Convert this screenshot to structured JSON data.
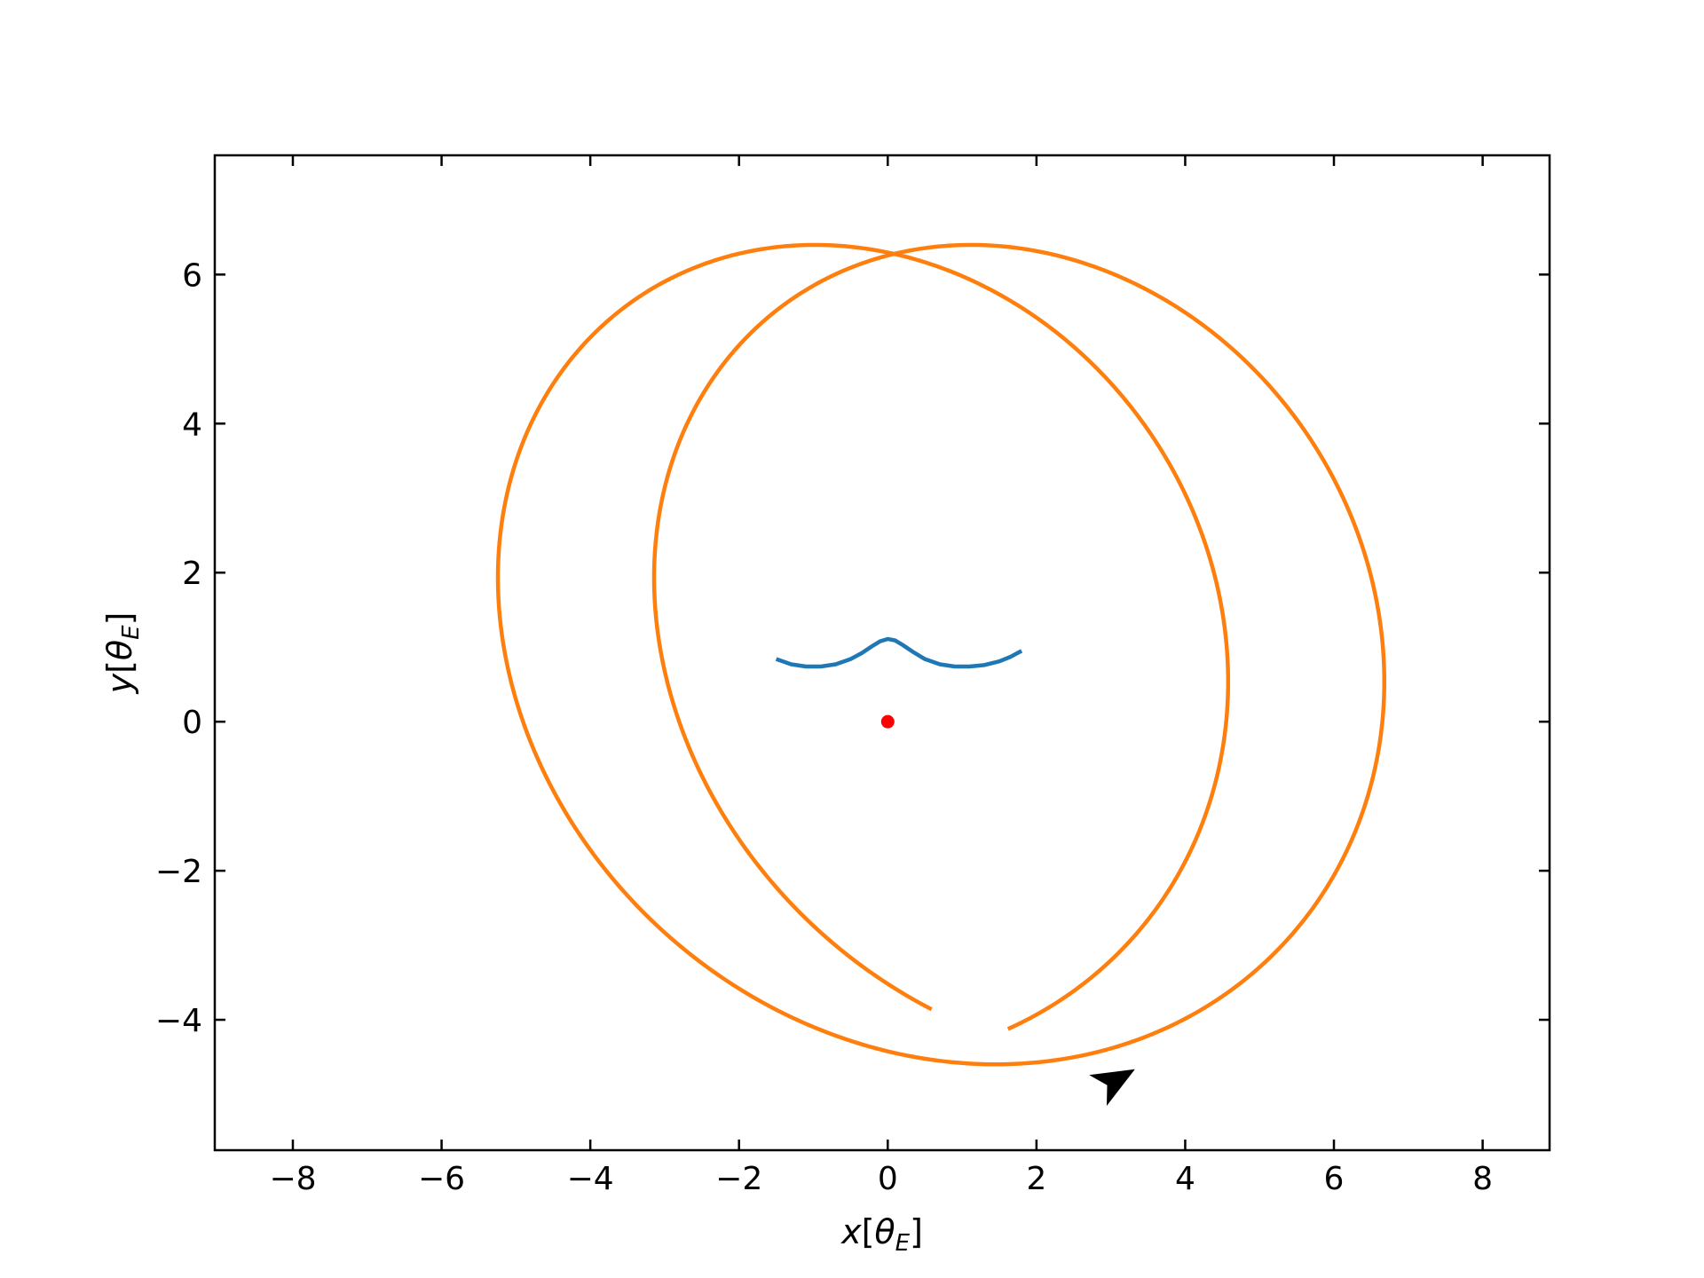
{
  "chart_data": {
    "type": "line",
    "title": "",
    "xlabel": {
      "var": "x",
      "open": "[",
      "sym": "θ",
      "sub": "E",
      "close": "]"
    },
    "ylabel": {
      "var": "y",
      "open": "[",
      "sym": "θ",
      "sub": "E",
      "close": "]"
    },
    "xlim": [
      -9.05,
      8.9
    ],
    "ylim": [
      -5.75,
      7.6
    ],
    "xticks": [
      -8,
      -6,
      -4,
      -2,
      0,
      2,
      4,
      6,
      8
    ],
    "yticks": [
      -4,
      -2,
      0,
      2,
      4,
      6
    ],
    "xtick_labels": [
      "−8",
      "−6",
      "−4",
      "−2",
      "0",
      "2",
      "4",
      "6",
      "8"
    ],
    "ytick_labels": [
      "−4",
      "−2",
      "0",
      "2",
      "4",
      "6"
    ],
    "grid": false,
    "ticks_direction": "in",
    "colors": {
      "orbit": "#ff7f0e",
      "wave": "#1f77b4",
      "point": "#ff0000",
      "arrow": "#000000"
    },
    "series": [
      {
        "kind": "trochoid",
        "color": "#ff7f0e",
        "description_values": {
          "ellipse_center": [
            0.0,
            0.9
          ],
          "semi_axis_x": 5.1,
          "semi_axis_y": 5.8,
          "rotation_deg": 42,
          "drift_per_turn": [
            2.1,
            0.0
          ],
          "turns": 1.85
        }
      },
      {
        "kind": "line",
        "color": "#1f77b4",
        "x": [
          -1.5,
          -1.3,
          -1.1,
          -0.9,
          -0.7,
          -0.5,
          -0.35,
          -0.2,
          -0.1,
          0.0,
          0.1,
          0.2,
          0.35,
          0.5,
          0.7,
          0.9,
          1.1,
          1.3,
          1.5,
          1.65,
          1.8
        ],
        "y": [
          0.84,
          0.77,
          0.74,
          0.74,
          0.77,
          0.84,
          0.92,
          1.02,
          1.08,
          1.11,
          1.09,
          1.03,
          0.93,
          0.84,
          0.77,
          0.74,
          0.74,
          0.76,
          0.81,
          0.87,
          0.95
        ]
      }
    ],
    "points": [
      {
        "x": 0.0,
        "y": 0.0,
        "color": "#ff0000"
      }
    ],
    "arrow": {
      "x": 3.05,
      "y": -4.82,
      "dx": 0.35,
      "dy": 0.2,
      "color": "#000000"
    }
  }
}
